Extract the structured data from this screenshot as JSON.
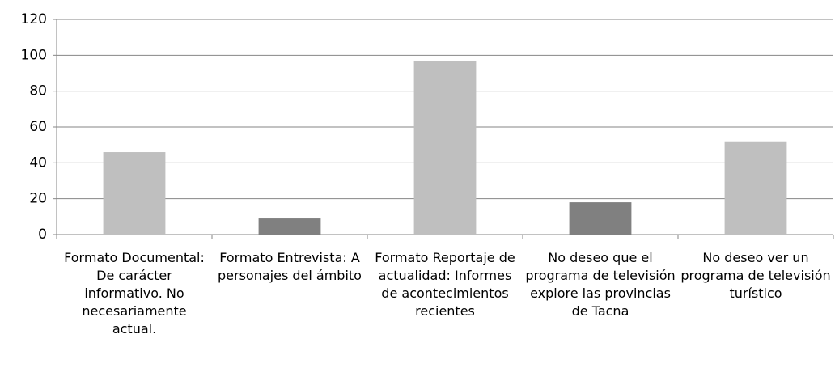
{
  "chart_data": {
    "type": "bar",
    "categories": [
      "Formato Documental: De carácter informativo. No necesariamente actual.",
      "Formato Entrevista: A personajes del ámbito",
      "Formato Reportaje de actualidad: Informes de acontecimientos recientes",
      "No deseo que el programa de televisión explore las provincias de Tacna",
      "No deseo ver un programa de televisión turístico"
    ],
    "values": [
      46,
      9,
      97,
      18,
      52
    ],
    "colors": [
      "#bfbfbf",
      "#808080",
      "#bfbfbf",
      "#808080",
      "#bfbfbf"
    ],
    "ylim": [
      0,
      120
    ],
    "yticks": [
      0,
      20,
      40,
      60,
      80,
      100,
      120
    ],
    "grid": true
  }
}
